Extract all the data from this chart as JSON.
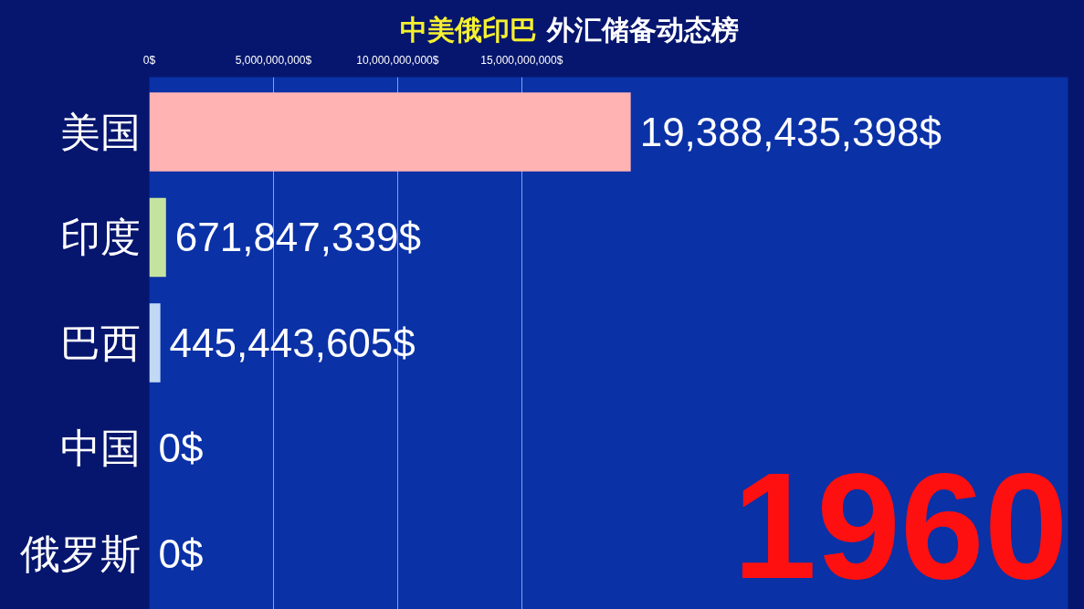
{
  "chart_data": {
    "type": "bar",
    "orientation": "horizontal",
    "title": "中美俄印巴 外汇储备动态榜",
    "categories": [
      "美国",
      "印度",
      "巴西",
      "中国",
      "俄罗斯"
    ],
    "values": [
      19388435398,
      671847339,
      445443605,
      0,
      0
    ],
    "colors": [
      "#ffb3b3",
      "#c5e3a0",
      "#c2d9f5",
      null,
      null
    ],
    "value_labels": [
      "19,388,435,398$",
      "671,847,339$",
      "445,443,605$",
      "0$",
      "0$"
    ],
    "xlim": [
      0,
      37000000000
    ],
    "xticks": [
      {
        "value": 0,
        "label": "0$"
      },
      {
        "value": 5000000000,
        "label": "5,000,000,000$"
      },
      {
        "value": 10000000000,
        "label": "10,000,000,000$"
      },
      {
        "value": 15000000000,
        "label": "15,000,000,000$"
      }
    ],
    "grid": "x",
    "annotations": [
      "1960"
    ]
  }
}
